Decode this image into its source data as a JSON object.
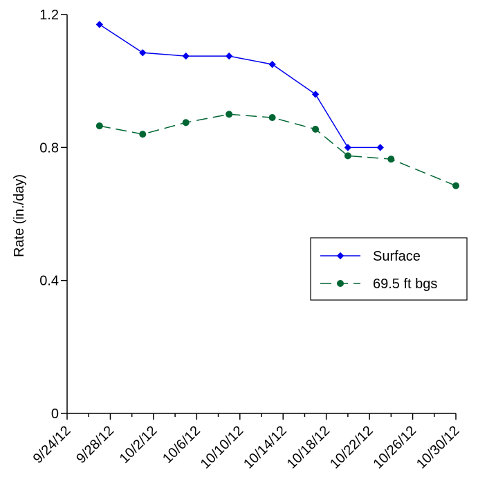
{
  "chart_data": {
    "type": "line",
    "title": "",
    "xlabel": "",
    "ylabel": "Rate (in./day)",
    "xlim": [
      "9/24/12",
      "10/30/12"
    ],
    "ylim": [
      0,
      1.2
    ],
    "x_ticks": [
      "9/24/12",
      "9/28/12",
      "10/2/12",
      "10/6/12",
      "10/10/12",
      "10/14/12",
      "10/18/12",
      "10/22/12",
      "10/26/12",
      "10/30/12"
    ],
    "y_ticks": [
      0,
      0.4,
      0.8,
      1.2
    ],
    "y_tick_labels": [
      "0",
      "0.4",
      "0.8",
      "1.2"
    ],
    "grid": false,
    "legend_position": "right",
    "series": [
      {
        "name": "Surface",
        "color": "#0000ee",
        "marker": "diamond",
        "line_style": "solid",
        "x": [
          "9/27/12",
          "10/1/12",
          "10/5/12",
          "10/9/12",
          "10/13/12",
          "10/17/12",
          "10/20/12",
          "10/23/12"
        ],
        "values": [
          1.17,
          1.085,
          1.075,
          1.075,
          1.05,
          0.96,
          0.8,
          0.8
        ]
      },
      {
        "name": "69.5 ft bgs",
        "color": "#006633",
        "marker": "circle",
        "line_style": "dashed",
        "x": [
          "9/27/12",
          "10/1/12",
          "10/5/12",
          "10/9/12",
          "10/13/12",
          "10/17/12",
          "10/20/12",
          "10/24/12",
          "10/30/12"
        ],
        "values": [
          0.865,
          0.84,
          0.875,
          0.9,
          0.89,
          0.855,
          0.775,
          0.765,
          0.685
        ]
      }
    ]
  }
}
